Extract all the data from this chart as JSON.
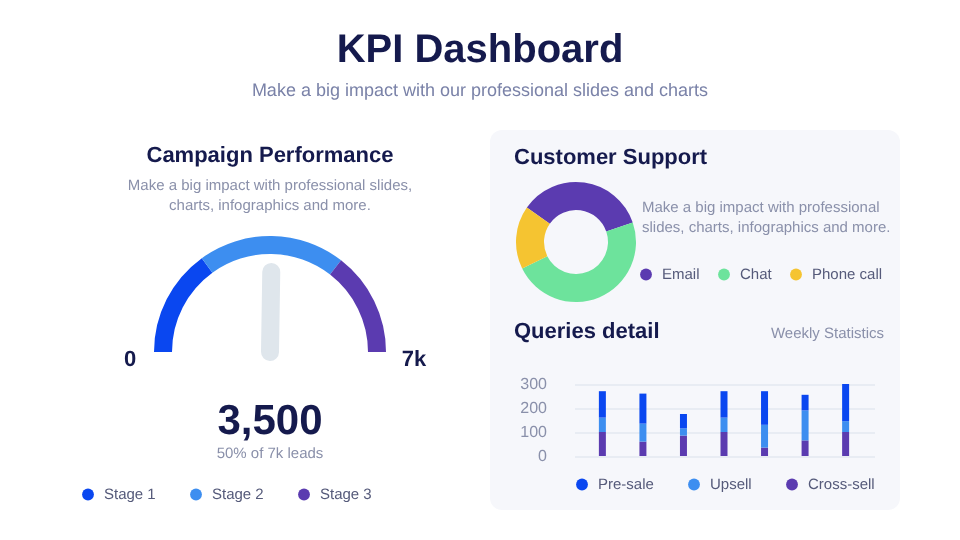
{
  "chart_data": [
    {
      "type": "other",
      "title": "KPI Dashboard",
      "subtitle": "Make a big impact with our professional slides and charts"
    },
    {
      "type": "donut",
      "title": "Campaign Performance",
      "subtitle": "Make a big impact with professional slides, charts, infographics and more.",
      "categories": [
        "Stage 1",
        "Stage 2",
        "Stage 3"
      ],
      "values": [
        30,
        41,
        29
      ],
      "colors": [
        "#0a47f0",
        "#3d8ef0",
        "#5b3bb0"
      ],
      "needle": "Stage 2",
      "annotations": [
        "0",
        "7k",
        "3,500",
        "50% of 7k leads"
      ],
      "legend": "bottom"
    },
    {
      "type": "donut",
      "title": "Customer Support",
      "annotations": [
        "Make a big impact with professional slides, charts, infographics and more."
      ],
      "categories": [
        "Email",
        "Chat",
        "Phone call"
      ],
      "values": [
        35,
        48,
        17
      ],
      "colors": [
        "#5b3bb0",
        "#6de39c",
        "#f5c431"
      ],
      "legend": "right"
    },
    {
      "type": "bar",
      "stacked": true,
      "title": "Queries detail",
      "subtitle": "Weekly Statistics",
      "categories": [
        null,
        null,
        null,
        null,
        null,
        null,
        null
      ],
      "series": [
        {
          "name": "Cross-sell",
          "color": "#5b3bb0",
          "values": [
            100,
            60,
            85,
            100,
            35,
            65,
            100
          ]
        },
        {
          "name": "Upsell",
          "color": "#3d8ef0",
          "values": [
            60,
            75,
            30,
            60,
            95,
            125,
            45
          ]
        },
        {
          "name": "Pre-sale",
          "color": "#0a47f0",
          "values": [
            110,
            125,
            60,
            110,
            140,
            65,
            155
          ]
        }
      ],
      "ylim": [
        0,
        300
      ],
      "yticks": [
        0,
        100,
        200,
        300
      ],
      "grid": "y",
      "legend": "bottom"
    }
  ]
}
